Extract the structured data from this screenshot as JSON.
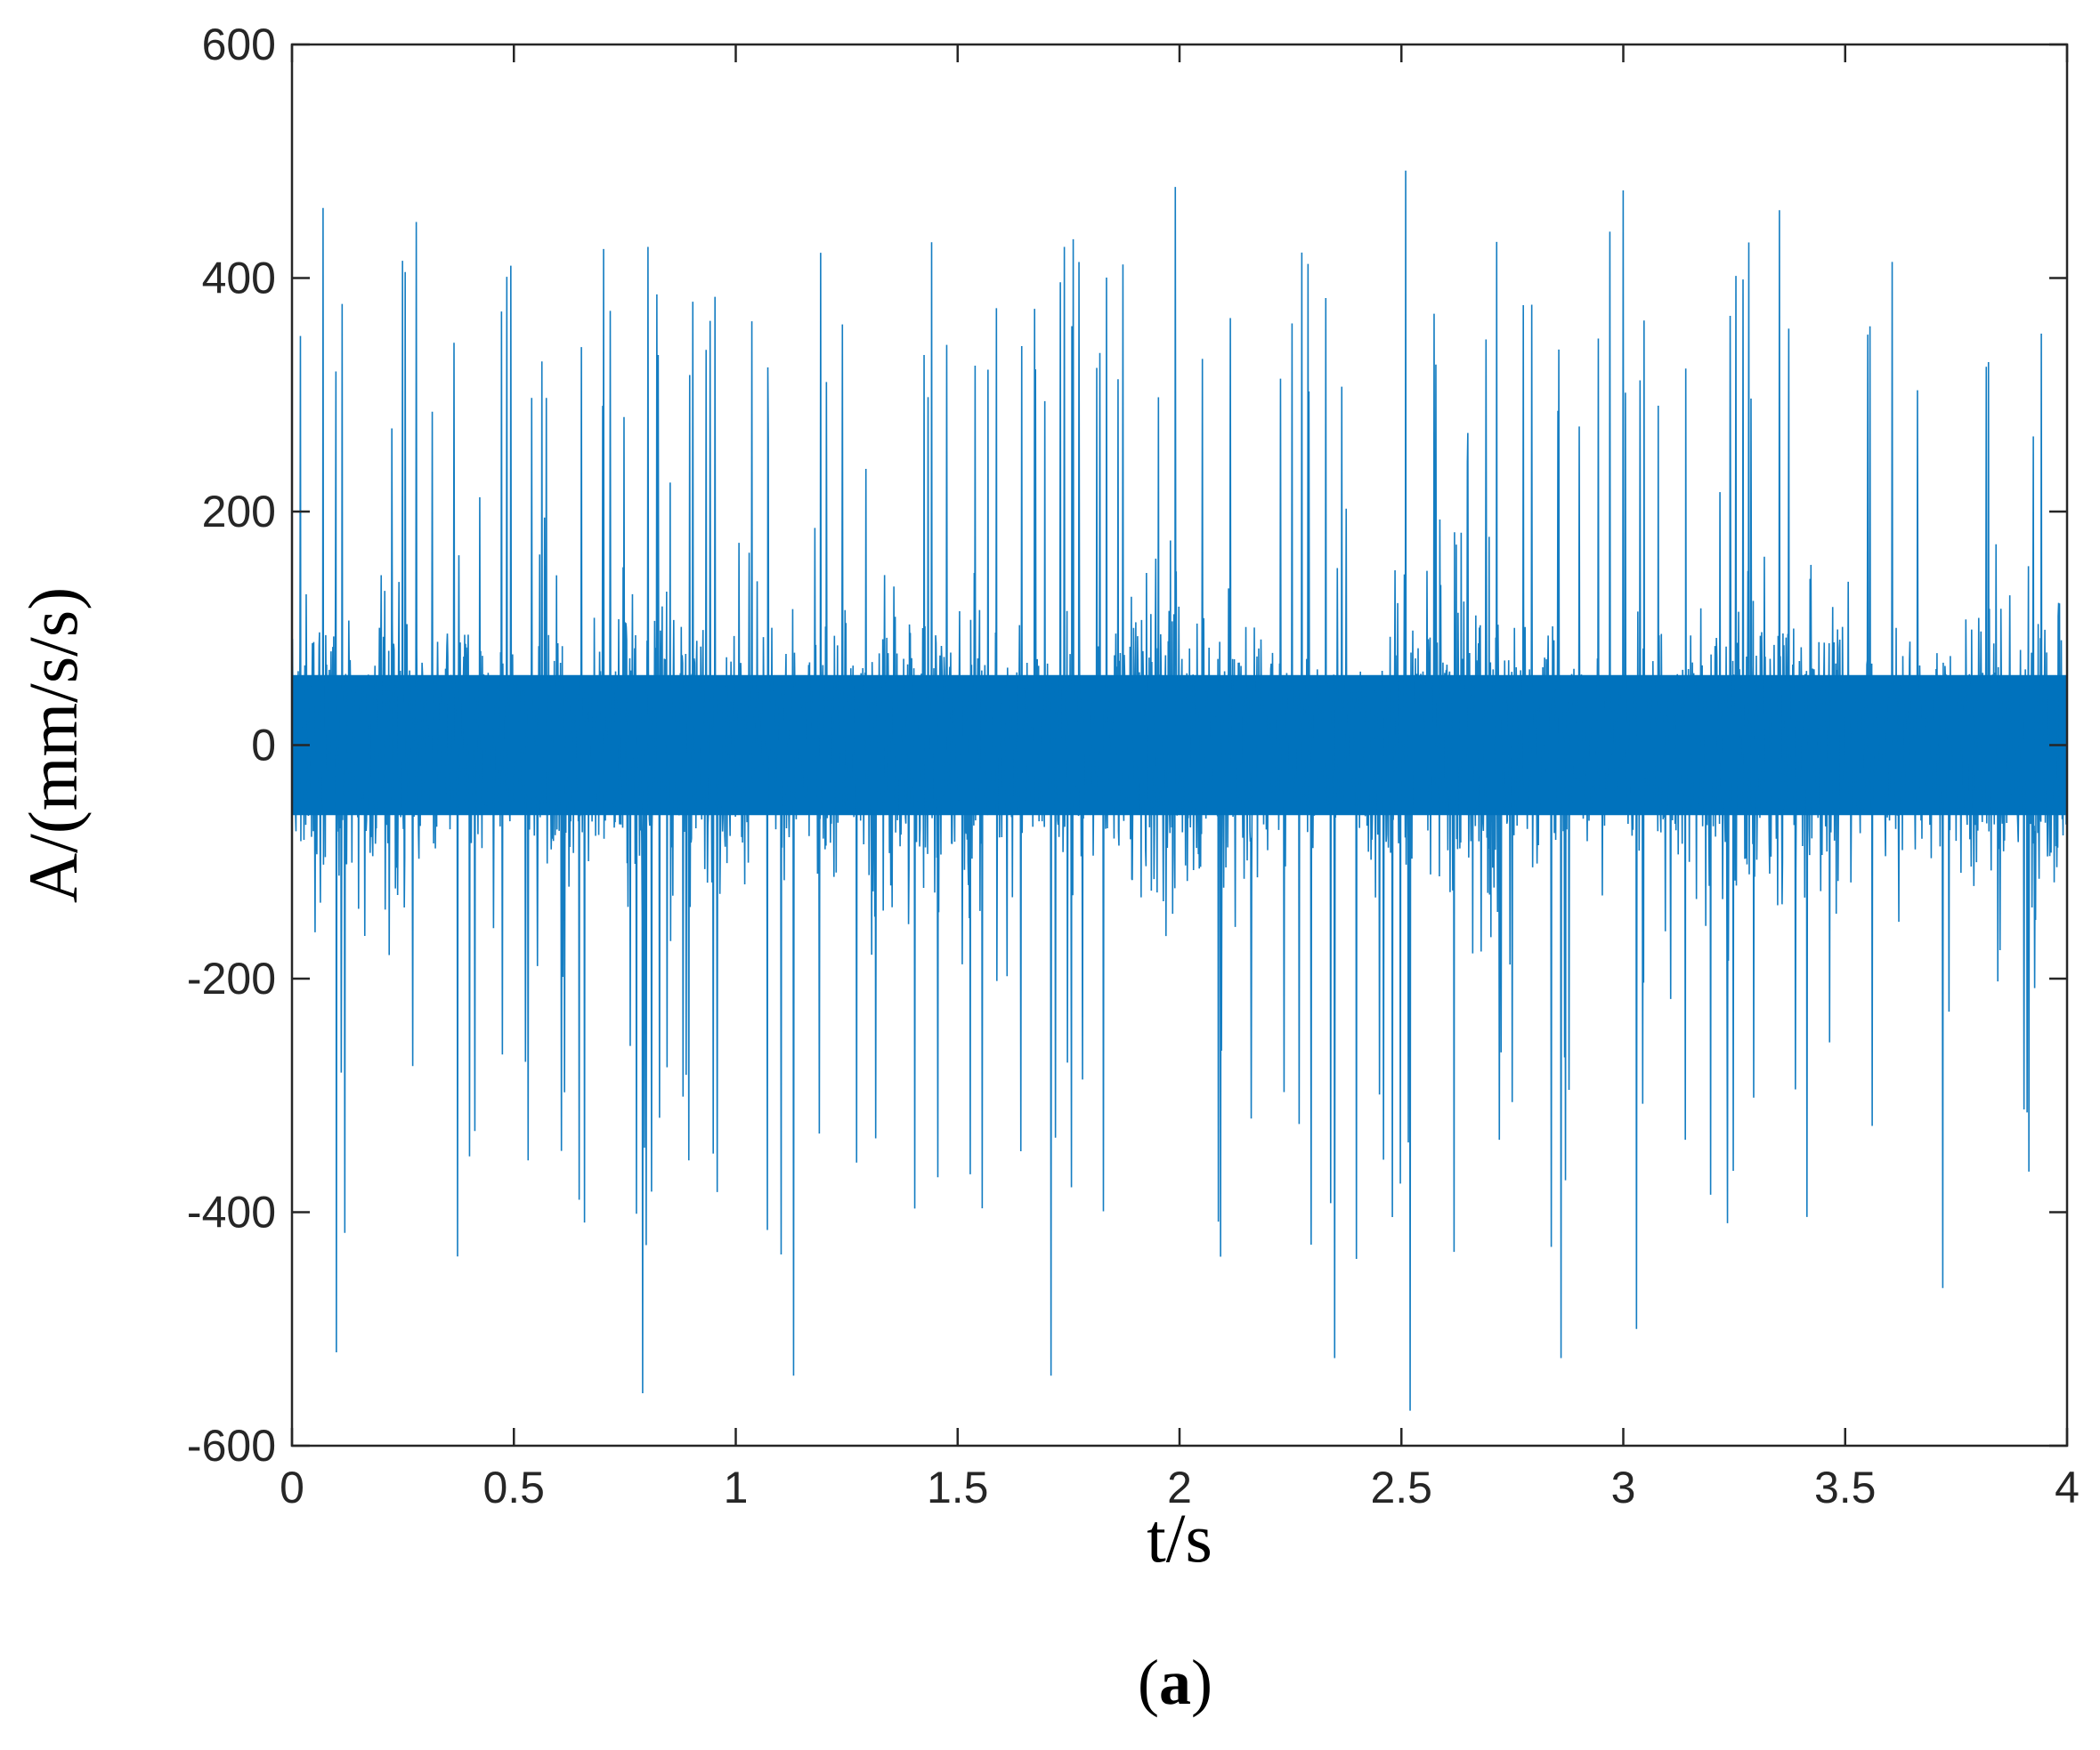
{
  "chart_data": {
    "type": "line",
    "title": "",
    "xlabel": "t/s",
    "ylabel": "A/(mm/s/s)",
    "panel_label": "(a)",
    "xlim": [
      0,
      4
    ],
    "ylim": [
      -600,
      600
    ],
    "x_ticks": [
      0,
      0.5,
      1,
      1.5,
      2,
      2.5,
      3,
      3.5,
      4
    ],
    "x_tick_labels": [
      "0",
      "0.5",
      "1",
      "1.5",
      "2",
      "2.5",
      "3",
      "3.5",
      "4"
    ],
    "y_ticks": [
      -600,
      -400,
      -200,
      0,
      200,
      400,
      600
    ],
    "y_tick_labels": [
      "-600",
      "-400",
      "-200",
      "0",
      "200",
      "400",
      "600"
    ],
    "grid": false,
    "legend": "none",
    "series": [
      {
        "color": "#0072BD",
        "description": "vibration acceleration signal, dense noise band roughly ±150 with periodic impulses",
        "notable_peaks": [
          {
            "x": 0.07,
            "y": 460
          },
          {
            "x": 0.1,
            "y": 485
          },
          {
            "x": 0.1,
            "y": -520
          },
          {
            "x": 0.28,
            "y": 448
          },
          {
            "x": 0.79,
            "y": -555
          },
          {
            "x": 1.13,
            "y": -540
          },
          {
            "x": 1.71,
            "y": -540
          },
          {
            "x": 1.99,
            "y": 478
          },
          {
            "x": 2.51,
            "y": 492
          },
          {
            "x": 2.52,
            "y": -570
          },
          {
            "x": 2.35,
            "y": -525
          },
          {
            "x": 2.86,
            "y": -525
          },
          {
            "x": 3.0,
            "y": 475
          },
          {
            "x": 3.03,
            "y": -500
          },
          {
            "x": 3.72,
            "y": 460
          },
          {
            "x": 3.72,
            "y": -465
          }
        ]
      }
    ]
  }
}
